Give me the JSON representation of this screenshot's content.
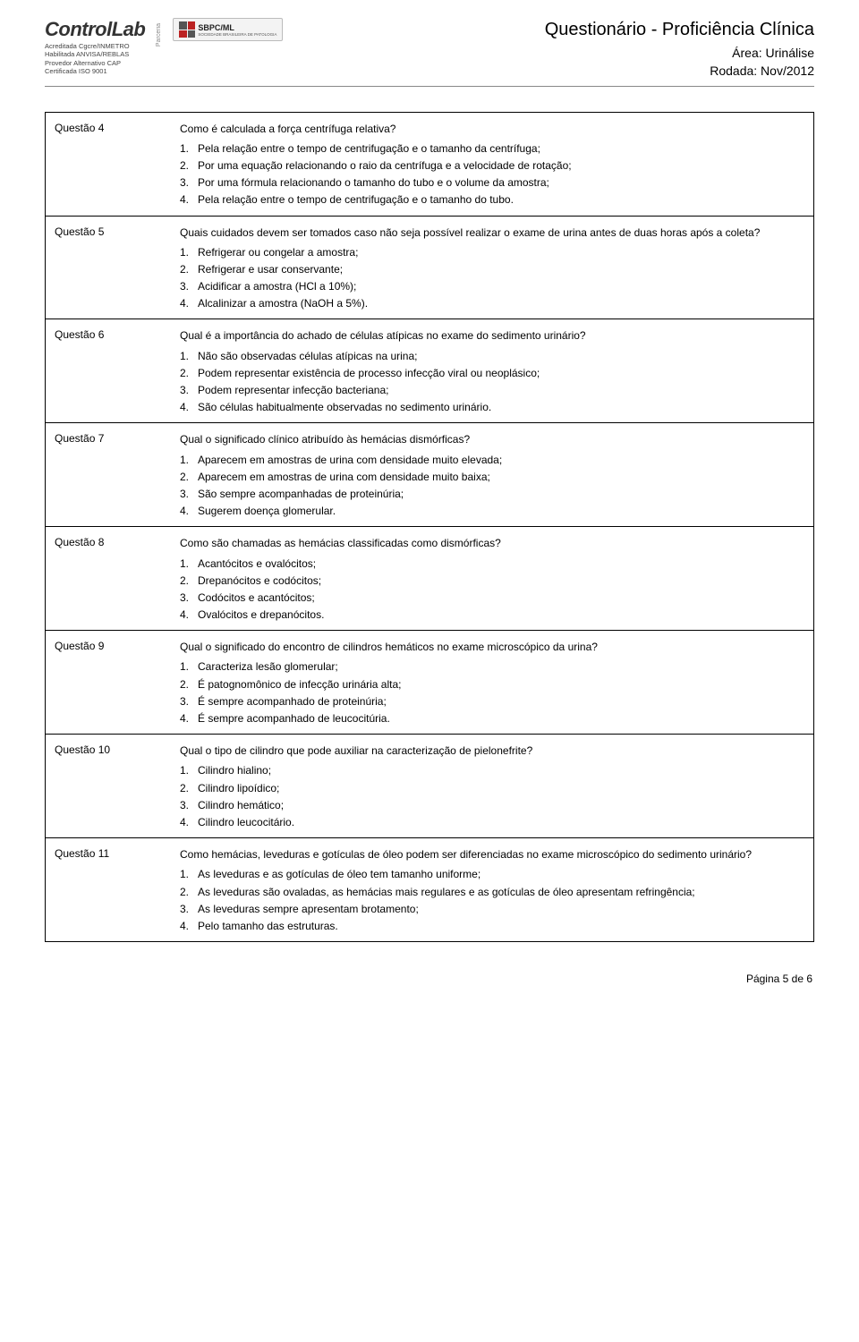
{
  "header": {
    "logo_text": "ControlLab",
    "cred_lines": [
      "Acreditada Cgcre/INMETRO",
      "Habilitada ANVISA/REBLAS",
      "Provedor Alternativo CAP",
      "Certificada ISO 9001"
    ],
    "side_label_top": "Parceria",
    "side_label_bottom": "ControlLab",
    "sbpc_label": "SBPC/ML",
    "sbpc_sub": "SOCIEDADE BRASILEIRA DE PATOLOGIA",
    "title": "Questionário - Proficiência Clínica",
    "area": "Área: Urinálise",
    "round": "Rodada: Nov/2012"
  },
  "questions": [
    {
      "label": "Questão 4",
      "text": "Como é calculada a força centrífuga relativa?",
      "options": [
        "Pela relação entre o tempo de centrifugação e o tamanho da centrífuga;",
        "Por uma equação relacionando o raio da centrífuga e a velocidade de rotação;",
        "Por uma fórmula relacionando o tamanho do tubo e o volume da amostra;",
        "Pela relação entre o tempo de centrifugação e o tamanho do tubo."
      ]
    },
    {
      "label": "Questão 5",
      "text": "Quais cuidados devem ser tomados caso não seja possível realizar o exame de urina antes de duas horas após a coleta?",
      "options": [
        "Refrigerar ou congelar a amostra;",
        "Refrigerar e usar conservante;",
        "Acidificar a amostra (HCl a 10%);",
        "Alcalinizar a amostra (NaOH a 5%)."
      ]
    },
    {
      "label": "Questão 6",
      "text": "Qual é a importância do achado de células atípicas no exame do sedimento urinário?",
      "options": [
        "Não são observadas células atípicas na urina;",
        "Podem representar existência de processo infecção viral ou neoplásico;",
        "Podem representar infecção bacteriana;",
        "São células habitualmente observadas no sedimento urinário."
      ]
    },
    {
      "label": "Questão 7",
      "text": "Qual o significado clínico atribuído às hemácias dismórficas?",
      "options": [
        "Aparecem em amostras de urina com densidade muito elevada;",
        "Aparecem em amostras de urina com densidade muito baixa;",
        "São sempre acompanhadas de proteinúria;",
        "Sugerem doença glomerular."
      ]
    },
    {
      "label": "Questão 8",
      "text": "Como são chamadas as hemácias classificadas como dismórficas?",
      "options": [
        "Acantócitos e ovalócitos;",
        "Drepanócitos e codócitos;",
        "Codócitos e acantócitos;",
        "Ovalócitos e drepanócitos."
      ]
    },
    {
      "label": "Questão 9",
      "text": "Qual o significado do encontro de cilindros hemáticos no exame microscópico da urina?",
      "options": [
        "Caracteriza lesão glomerular;",
        "É patognomônico de infecção urinária alta;",
        "É sempre acompanhado de proteinúria;",
        "É sempre acompanhado de leucocitúria."
      ]
    },
    {
      "label": "Questão 10",
      "text": "Qual o tipo de cilindro que pode auxiliar na caracterização de pielonefrite?",
      "options": [
        "Cilindro hialino;",
        "Cilindro lipoídico;",
        "Cilindro hemático;",
        "Cilindro leucocitário."
      ]
    },
    {
      "label": "Questão 11",
      "text": "Como hemácias, leveduras e gotículas de óleo podem ser diferenciadas no exame microscópico do sedimento urinário?",
      "options": [
        "As leveduras e as gotículas de óleo tem tamanho uniforme;",
        "As leveduras são ovaladas, as hemácias mais regulares e as gotículas de óleo apresentam refringência;",
        "As leveduras sempre apresentam brotamento;",
        "Pelo tamanho das estruturas."
      ]
    }
  ],
  "footer": "Página 5 de 6"
}
